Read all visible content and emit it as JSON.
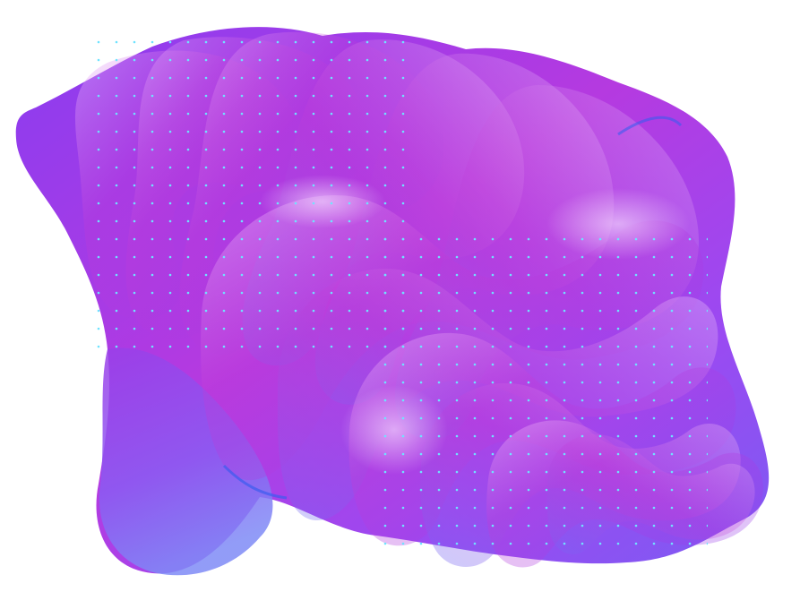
{
  "artwork": {
    "background_color": "#ffffff",
    "palette": {
      "violet": "#8a3df0",
      "magenta": "#c23ad6",
      "periwinkle": "#7a86f5",
      "blue": "#3b5cf0",
      "highlight": "#f2d8ff",
      "dot": "#6fe3ff"
    },
    "elements": [
      "abstract-fluid-blob",
      "ribbon-layers",
      "dot-grid-top-left",
      "dot-grid-bottom-right"
    ]
  }
}
